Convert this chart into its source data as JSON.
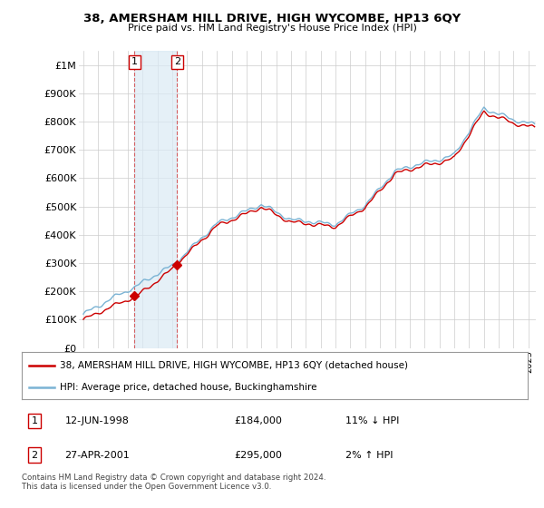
{
  "title": "38, AMERSHAM HILL DRIVE, HIGH WYCOMBE, HP13 6QY",
  "subtitle": "Price paid vs. HM Land Registry's House Price Index (HPI)",
  "ylim": [
    0,
    1050000
  ],
  "yticks": [
    0,
    100000,
    200000,
    300000,
    400000,
    500000,
    600000,
    700000,
    800000,
    900000,
    1000000
  ],
  "ytick_labels": [
    "£0",
    "£100K",
    "£200K",
    "£300K",
    "£400K",
    "£500K",
    "£600K",
    "£700K",
    "£800K",
    "£900K",
    "£1M"
  ],
  "hpi_color": "#7ab3d4",
  "price_color": "#cc0000",
  "sale_marker_color": "#cc0000",
  "sale1_year": 1998.45,
  "sale1_price": 184000,
  "sale1_label": "1",
  "sale2_year": 2001.32,
  "sale2_price": 295000,
  "sale2_label": "2",
  "shade_color": "#daeaf5",
  "shade_alpha": 0.7,
  "shade_x1": 1998.45,
  "shade_x2": 2001.32,
  "legend_line1": "38, AMERSHAM HILL DRIVE, HIGH WYCOMBE, HP13 6QY (detached house)",
  "legend_line2": "HPI: Average price, detached house, Buckinghamshire",
  "table_row1": [
    "1",
    "12-JUN-1998",
    "£184,000",
    "11% ↓ HPI"
  ],
  "table_row2": [
    "2",
    "27-APR-2001",
    "£295,000",
    "2% ↑ HPI"
  ],
  "footer": "Contains HM Land Registry data © Crown copyright and database right 2024.\nThis data is licensed under the Open Government Licence v3.0.",
  "background_color": "#ffffff",
  "grid_color": "#cccccc",
  "xlim_left": 1994.7,
  "xlim_right": 2025.5
}
